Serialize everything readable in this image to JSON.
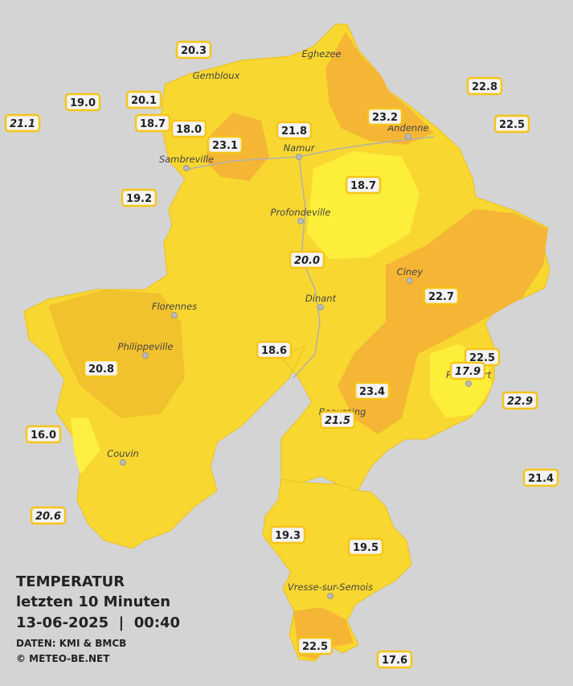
{
  "legend": {
    "title": "TEMPERATUR",
    "period": "letzten 10 Minuten",
    "datetime": "13-06-2025  |  00:40",
    "source": "DATEN: KMI & BMCB",
    "copyright": "© METEO-BE.NET"
  },
  "cities": [
    "Eghezee",
    "Gembloux",
    "Andenne",
    "Namur",
    "Sambreville",
    "Profondeville",
    "Ciney",
    "Florennes",
    "Dinant",
    "Philippeville",
    "Rochefort",
    "Beauraing",
    "Couvin",
    "Vresse-sur-Semois"
  ],
  "stations": [
    "20.3",
    "19.0",
    "20.1",
    "21.1",
    "18.7",
    "18.0",
    "23.1",
    "21.8",
    "23.2",
    "22.8",
    "22.5",
    "19.2",
    "18.7",
    "20.0",
    "22.7",
    "18.6",
    "22.5",
    "17.9",
    "20.8",
    "23.4",
    "22.9",
    "21.5",
    "16.0",
    "21.4",
    "20.6",
    "19.3",
    "19.5",
    "22.5",
    "17.6"
  ]
}
